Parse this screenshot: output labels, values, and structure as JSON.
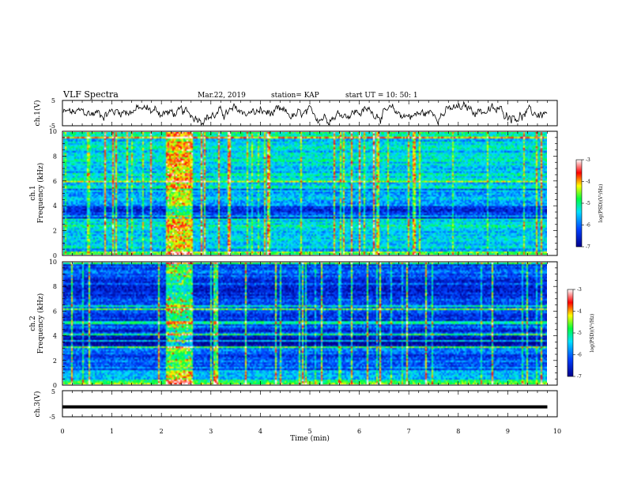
{
  "header": {
    "title": "VLF Spectra",
    "date": "Mar.22, 2019",
    "station": "station= KAP",
    "start": "start  UT =   10: 50: 1"
  },
  "chart_data": [
    {
      "type": "line",
      "id": "ch1-waveform",
      "ylabel": "ch.1(V)",
      "ylim": [
        -5,
        5
      ],
      "yticks": [
        "5",
        "-5"
      ],
      "xlim": [
        0,
        10
      ],
      "x_end": 9.8,
      "series_color": "#000000"
    },
    {
      "type": "heatmap",
      "id": "ch1-spectrogram",
      "ylabel": "ch.1",
      "ylabel2": "Frequency (kHz)",
      "ylim": [
        0,
        10
      ],
      "yticks": [
        "0",
        "2",
        "4",
        "6",
        "8",
        "10"
      ],
      "xlim": [
        0,
        10
      ],
      "x_end": 9.8,
      "burst_interval_min": [
        2.05,
        2.6
      ],
      "colorbar": {
        "label": "log(PSD)(V²/Hz)",
        "range": [
          -7,
          -3
        ],
        "ticks": [
          "-3",
          "-4",
          "-5",
          "-6",
          "-7"
        ]
      }
    },
    {
      "type": "heatmap",
      "id": "ch2-spectrogram",
      "ylabel": "ch.2",
      "ylabel2": "Frequency (kHz)",
      "ylim": [
        0,
        10
      ],
      "yticks": [
        "0",
        "2",
        "4",
        "6",
        "8",
        "10"
      ],
      "xlim": [
        0,
        10
      ],
      "x_end": 9.8,
      "burst_interval_min": [
        2.05,
        2.6
      ],
      "colorbar": {
        "label": "log(PSD)(V²/Hz)",
        "range": [
          -7,
          -3
        ],
        "ticks": [
          "-3",
          "-4",
          "-5",
          "-6",
          "-7"
        ]
      }
    },
    {
      "type": "line",
      "id": "ch3-waveform",
      "ylabel": "ch.3(V)",
      "ylim": [
        -5,
        5
      ],
      "yticks": [
        "5",
        "-5"
      ],
      "xlim": [
        0,
        10
      ],
      "x_end": 9.8,
      "constant_value": -1.2,
      "series_color": "#000000"
    }
  ],
  "xaxis": {
    "label": "Time (min)",
    "range": [
      0,
      10
    ],
    "ticks": [
      "0",
      "1",
      "2",
      "3",
      "4",
      "5",
      "6",
      "7",
      "8",
      "9",
      "10"
    ]
  },
  "colors": {
    "low": "#00008c",
    "blue": "#0040ff",
    "cyan": "#00e0ff",
    "green": "#00ff40",
    "yellow": "#ffff00",
    "red": "#ff0000",
    "high": "#ffffff"
  }
}
